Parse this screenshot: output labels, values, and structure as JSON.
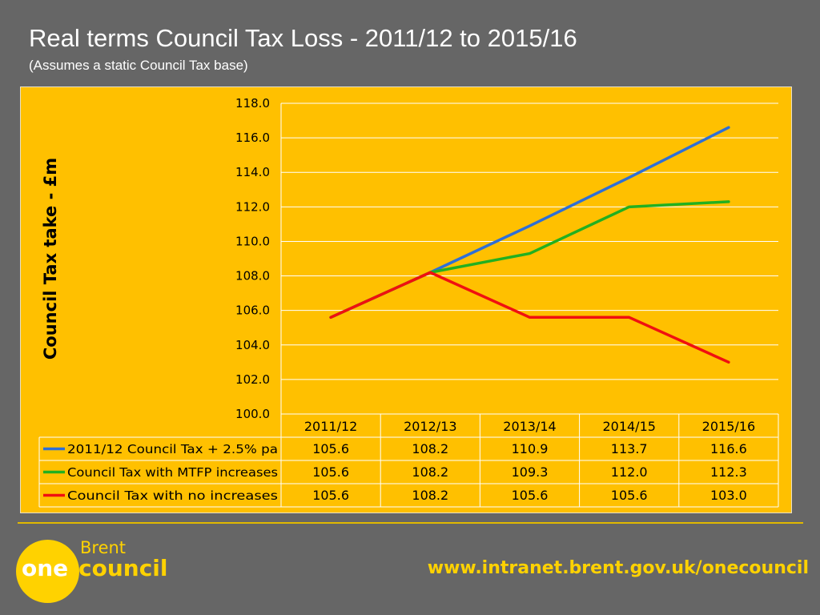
{
  "title": "Real terms Council Tax Loss - 2011/12 to 2015/16",
  "subtitle": "(Assumes a static Council Tax base)",
  "chart_data": {
    "type": "line",
    "title": "",
    "xlabel": "",
    "ylabel": "Council Tax take - £m",
    "ylim": [
      100,
      118
    ],
    "ytick_step": 2,
    "categories": [
      "2011/12",
      "2012/13",
      "2013/14",
      "2014/15",
      "2015/16"
    ],
    "grid": true,
    "legend": "data-table",
    "series": [
      {
        "name": "2011/12 Council Tax + 2.5% pa",
        "color": "#2e6fd6",
        "values": [
          105.6,
          108.2,
          110.9,
          113.7,
          116.6
        ]
      },
      {
        "name": "Council Tax with MTFP increases",
        "color": "#22b020",
        "values": [
          105.6,
          108.2,
          109.3,
          112.0,
          112.3
        ]
      },
      {
        "name": "Council Tax with no increases",
        "color": "#f01010",
        "values": [
          105.6,
          108.2,
          105.6,
          105.6,
          103.0
        ]
      }
    ]
  },
  "footer": {
    "logo_one": "one",
    "logo_brent": "Brent",
    "logo_council": "council",
    "url": "www.intranet.brent.gov.uk/onecouncil"
  }
}
